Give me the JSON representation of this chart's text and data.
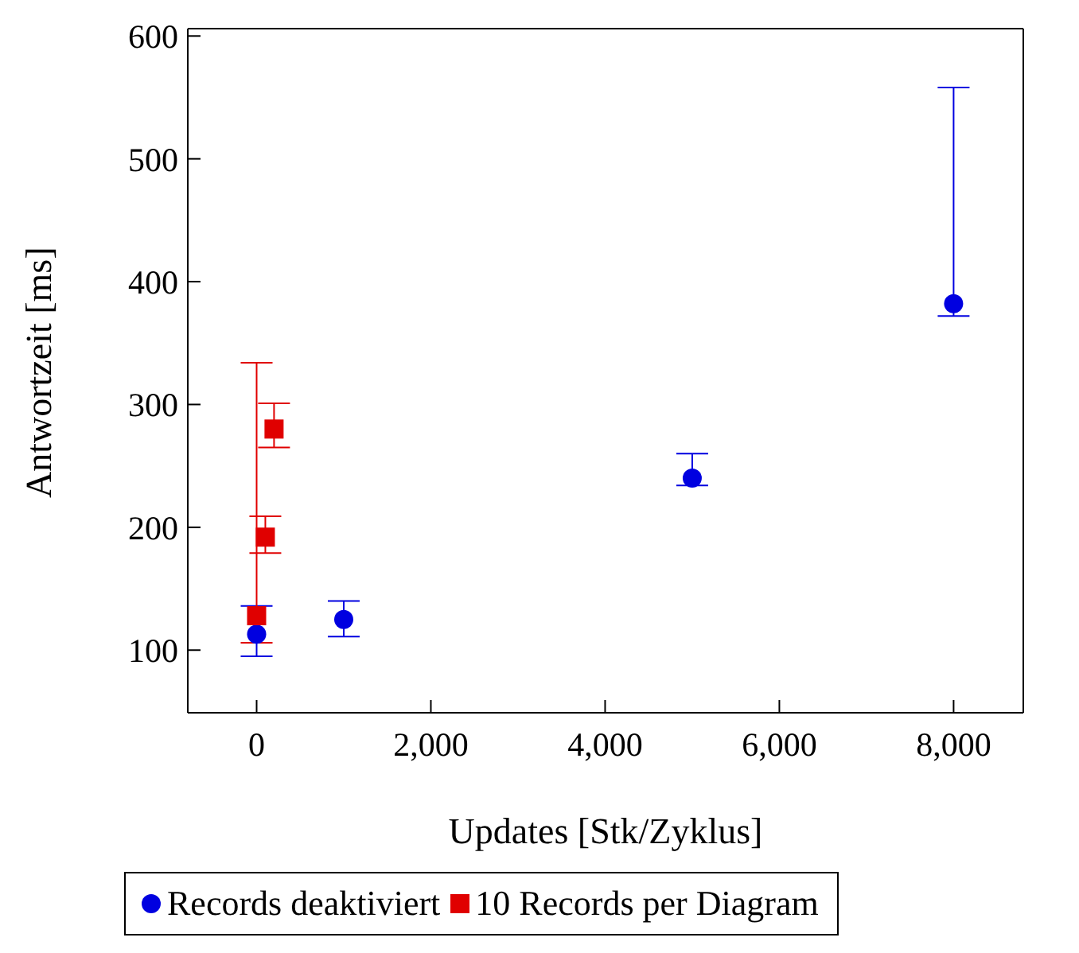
{
  "chart_data": {
    "type": "scatter",
    "xlabel": "Updates [Stk/Zyklus]",
    "ylabel": "Antwortzeit [ms]",
    "xlim": [
      -790,
      8800
    ],
    "xticks": [
      {
        "value": 0,
        "label": "0"
      },
      {
        "value": 2000,
        "label": "2,000"
      },
      {
        "value": 4000,
        "label": "4,000"
      },
      {
        "value": 6000,
        "label": "6,000"
      },
      {
        "value": 8000,
        "label": "8,000"
      }
    ],
    "ylim": [
      49,
      606
    ],
    "yticks": [
      100,
      200,
      300,
      400,
      500,
      600
    ],
    "grid": false,
    "legend": "bottom",
    "series": [
      {
        "name": "Records deaktiviert",
        "color": "#0000e0",
        "marker": "circle",
        "x": [
          0,
          1000,
          5000,
          8000
        ],
        "values": [
          113,
          125,
          240,
          382
        ],
        "errors": [
          [
            95,
            136
          ],
          [
            111,
            140
          ],
          [
            234,
            260
          ],
          [
            372,
            558
          ]
        ]
      },
      {
        "name": "10 Records per Diagram",
        "color": "#e00000",
        "marker": "square",
        "x": [
          0,
          100,
          200
        ],
        "values": [
          128,
          192,
          280
        ],
        "errors": [
          [
            106,
            334
          ],
          [
            179,
            209
          ],
          [
            265,
            301
          ]
        ]
      }
    ]
  }
}
